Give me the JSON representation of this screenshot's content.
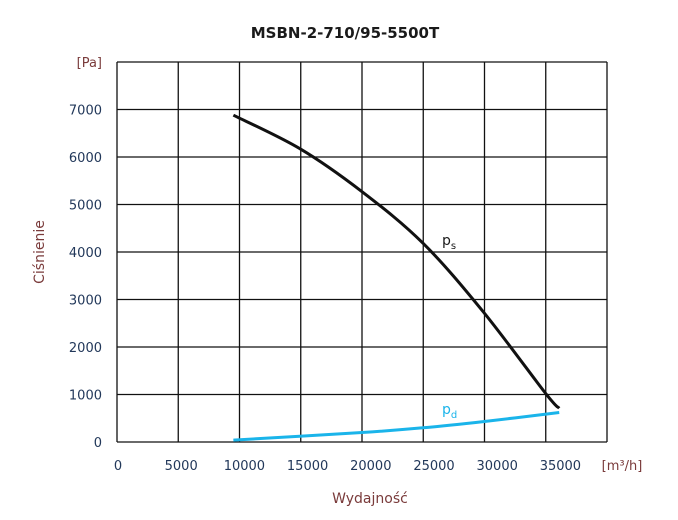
{
  "chart_data": {
    "type": "line",
    "title": "MSBN-2-710/95-5500T",
    "xlabel": "Wydajność",
    "ylabel": "Ciśnienie",
    "x_unit": "[m³/h]",
    "y_unit": "[Pa]",
    "xlim": [
      0,
      40000
    ],
    "ylim": [
      0,
      8000
    ],
    "x_ticks": [
      "0",
      "5000",
      "10000",
      "15000",
      "20000",
      "25000",
      "30000",
      "35000"
    ],
    "y_ticks": [
      "0",
      "1000",
      "2000",
      "3000",
      "4000",
      "5000",
      "6000",
      "7000"
    ],
    "grid": true,
    "series": [
      {
        "name": "ps",
        "label_main": "p",
        "label_sub": "s",
        "color": "#111111",
        "x": [
          9500,
          14900,
          20000,
          25000,
          29900,
          35000,
          36100
        ],
        "y": [
          6880,
          6180,
          5270,
          4180,
          2740,
          1020,
          710
        ]
      },
      {
        "name": "pd",
        "label_main": "p",
        "label_sub": "d",
        "color": "#1ab4ea",
        "x": [
          9500,
          20000,
          25000,
          29900,
          36100
        ],
        "y": [
          40,
          200,
          300,
          430,
          620
        ]
      }
    ]
  }
}
